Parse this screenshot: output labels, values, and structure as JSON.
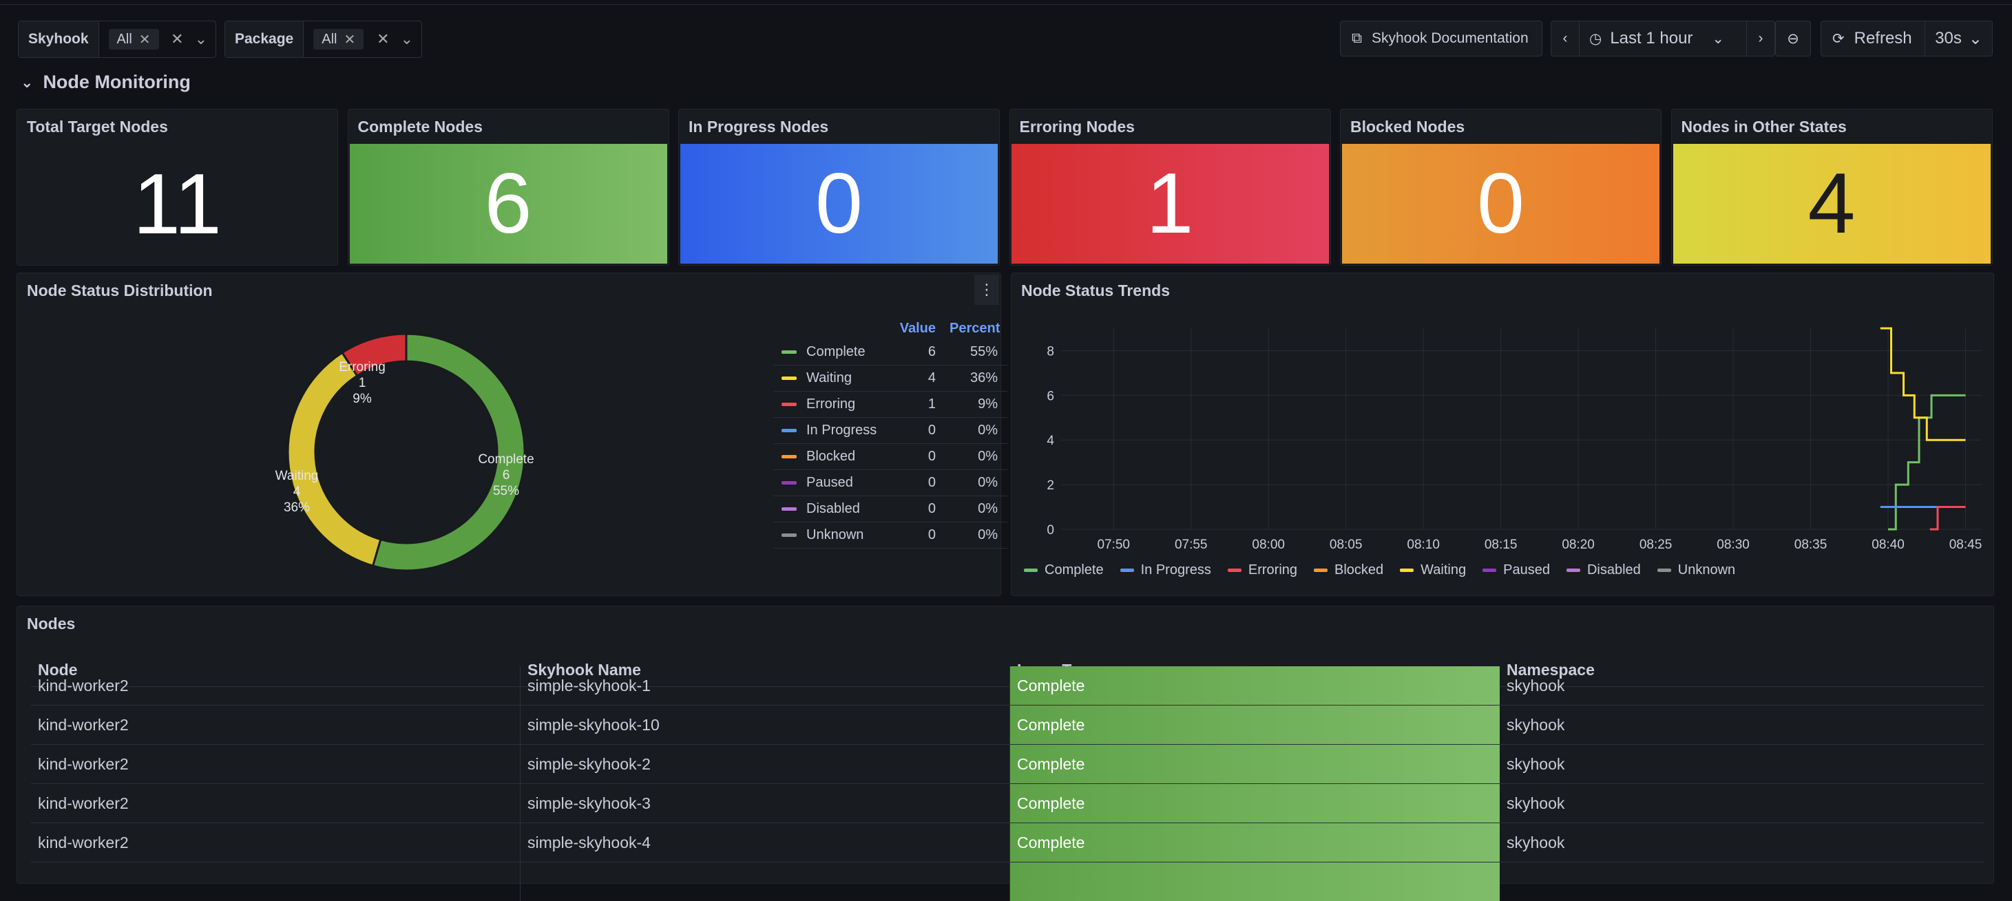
{
  "vars": {
    "skyhook": {
      "label": "Skyhook",
      "value": "All"
    },
    "package": {
      "label": "Package",
      "value": "All"
    }
  },
  "toolbar": {
    "docs": "Skyhook Documentation",
    "time_range": "Last 1 hour",
    "refresh": "Refresh",
    "interval": "30s"
  },
  "section": {
    "title": "Node Monitoring"
  },
  "stats": [
    {
      "title": "Total Target Nodes",
      "value": "11",
      "color": "#181b1f"
    },
    {
      "title": "Complete Nodes",
      "value": "6",
      "color": "#5fa54a"
    },
    {
      "title": "In Progress Nodes",
      "value": "0",
      "color": "#3e6fe8"
    },
    {
      "title": "Erroring Nodes",
      "value": "1",
      "color": "#d93036"
    },
    {
      "title": "Blocked Nodes",
      "value": "0",
      "color": "#e8862f"
    },
    {
      "title": "Nodes in Other States",
      "value": "4",
      "color": "#e2cd3a"
    }
  ],
  "distribution": {
    "title": "Node Status Distribution",
    "headers": {
      "value": "Value",
      "percent": "Percent"
    },
    "rows": [
      {
        "name": "Complete",
        "value": "6",
        "percent": "55%",
        "color": "#73bf69"
      },
      {
        "name": "Waiting",
        "value": "4",
        "percent": "36%",
        "color": "#fade2a"
      },
      {
        "name": "Erroring",
        "value": "1",
        "percent": "9%",
        "color": "#f2495c"
      },
      {
        "name": "In Progress",
        "value": "0",
        "percent": "0%",
        "color": "#5794f2"
      },
      {
        "name": "Blocked",
        "value": "0",
        "percent": "0%",
        "color": "#ff9830"
      },
      {
        "name": "Paused",
        "value": "0",
        "percent": "0%",
        "color": "#8f3bb8"
      },
      {
        "name": "Disabled",
        "value": "0",
        "percent": "0%",
        "color": "#b877d9"
      },
      {
        "name": "Unknown",
        "value": "0",
        "percent": "0%",
        "color": "#8e8e8e"
      }
    ],
    "donut_labels": [
      {
        "name": "Complete",
        "value": "6",
        "percent": "55%"
      },
      {
        "name": "Waiting",
        "value": "4",
        "percent": "36%"
      },
      {
        "name": "Erroring",
        "value": "1",
        "percent": "9%"
      }
    ]
  },
  "chart_data": {
    "type": "line",
    "title": "Node Status Trends",
    "x": [
      "07:50",
      "07:55",
      "08:00",
      "08:05",
      "08:10",
      "08:15",
      "08:20",
      "08:25",
      "08:30",
      "08:35",
      "08:40",
      "08:45"
    ],
    "ylim": [
      0,
      9
    ],
    "yticks": [
      "0",
      "2",
      "4",
      "6",
      "8"
    ],
    "legend": [
      "Complete",
      "In Progress",
      "Erroring",
      "Blocked",
      "Waiting",
      "Paused",
      "Disabled",
      "Unknown"
    ],
    "legend_colors": [
      "#73bf69",
      "#5794f2",
      "#f2495c",
      "#ff9830",
      "#fade2a",
      "#8f3bb8",
      "#b877d9",
      "#8e8e8e"
    ],
    "series": [
      {
        "name": "Complete",
        "color": "#73bf69",
        "points": [
          [
            "08:40",
            0
          ],
          [
            "08:40.5",
            2
          ],
          [
            "08:41.3",
            3
          ],
          [
            "08:42",
            5
          ],
          [
            "08:42.8",
            6
          ],
          [
            "08:45",
            6
          ]
        ]
      },
      {
        "name": "Waiting",
        "color": "#fade2a",
        "points": [
          [
            "08:39.5",
            9
          ],
          [
            "08:40.2",
            7
          ],
          [
            "08:41",
            6
          ],
          [
            "08:41.7",
            5
          ],
          [
            "08:42.5",
            4
          ],
          [
            "08:45",
            4
          ]
        ]
      },
      {
        "name": "In Progress",
        "color": "#5794f2",
        "points": [
          [
            "08:39.5",
            1
          ],
          [
            "08:42.7",
            1
          ],
          [
            "08:43.2",
            0
          ]
        ]
      },
      {
        "name": "Erroring",
        "color": "#f2495c",
        "points": [
          [
            "08:42.7",
            0
          ],
          [
            "08:43.2",
            1
          ],
          [
            "08:45",
            1
          ]
        ]
      }
    ]
  },
  "nodes": {
    "title": "Nodes",
    "headers": [
      "Node",
      "Skyhook Name",
      "Issue Type",
      "Namespace"
    ],
    "rows": [
      [
        "kind-worker2",
        "simple-skyhook-1",
        "Complete",
        "skyhook"
      ],
      [
        "kind-worker2",
        "simple-skyhook-10",
        "Complete",
        "skyhook"
      ],
      [
        "kind-worker2",
        "simple-skyhook-2",
        "Complete",
        "skyhook"
      ],
      [
        "kind-worker2",
        "simple-skyhook-3",
        "Complete",
        "skyhook"
      ],
      [
        "kind-worker2",
        "simple-skyhook-4",
        "Complete",
        "skyhook"
      ]
    ]
  }
}
